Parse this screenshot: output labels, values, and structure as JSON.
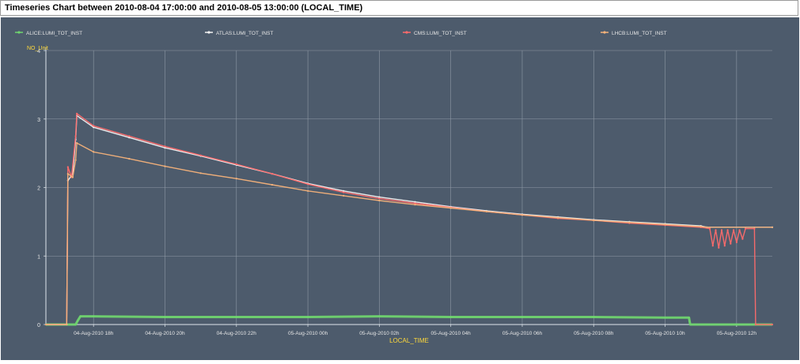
{
  "window": {
    "title": "Timeseries Chart between 2010-08-04 17:00:00 and 2010-08-05 13:00:00 (LOCAL_TIME)"
  },
  "chart_data": {
    "type": "line",
    "title": "",
    "xlabel": "LOCAL_TIME",
    "ylabel": "NO_Unit",
    "ylim": [
      0,
      4
    ],
    "y_ticks": [
      "0",
      "1",
      "2",
      "3",
      "4"
    ],
    "xlim": [
      "2010-08-04 16:40",
      "2010-08-05 13:00"
    ],
    "x_ticks": [
      {
        "t": "2010-08-04 18:00",
        "label": "04-Aug-2010 18h"
      },
      {
        "t": "2010-08-04 20:00",
        "label": "04-Aug-2010 20h"
      },
      {
        "t": "2010-08-04 22:00",
        "label": "04-Aug-2010 22h"
      },
      {
        "t": "2010-08-05 00:00",
        "label": "05-Aug-2010 00h"
      },
      {
        "t": "2010-08-05 02:00",
        "label": "05-Aug-2010 02h"
      },
      {
        "t": "2010-08-05 04:00",
        "label": "05-Aug-2010 04h"
      },
      {
        "t": "2010-08-05 06:00",
        "label": "05-Aug-2010 06h"
      },
      {
        "t": "2010-08-05 08:00",
        "label": "05-Aug-2010 08h"
      },
      {
        "t": "2010-08-05 10:00",
        "label": "05-Aug-2010 10h"
      },
      {
        "t": "2010-08-05 12:00",
        "label": "05-Aug-2010 12h"
      }
    ],
    "grid": true,
    "legend_position": "top",
    "background_color": "#4d5b6c",
    "gridline_color": "#8f9aa6",
    "label_color": "#ffd93a",
    "series": [
      {
        "name": "ALICE:LUMI_TOT_INST",
        "color": "#6fd46f",
        "points": [
          [
            "2010-08-04 16:40",
            0
          ],
          [
            "2010-08-04 17:30",
            0
          ],
          [
            "2010-08-04 17:33",
            0.05
          ],
          [
            "2010-08-04 17:38",
            0.12
          ],
          [
            "2010-08-04 18:00",
            0.12
          ],
          [
            "2010-08-04 20:00",
            0.11
          ],
          [
            "2010-08-04 22:00",
            0.11
          ],
          [
            "2010-08-05 00:00",
            0.11
          ],
          [
            "2010-08-05 02:00",
            0.12
          ],
          [
            "2010-08-05 04:00",
            0.11
          ],
          [
            "2010-08-05 06:00",
            0.11
          ],
          [
            "2010-08-05 08:00",
            0.11
          ],
          [
            "2010-08-05 10:00",
            0.1
          ],
          [
            "2010-08-05 10:40",
            0.1
          ],
          [
            "2010-08-05 10:42",
            0
          ],
          [
            "2010-08-05 13:00",
            0
          ]
        ]
      },
      {
        "name": "ATLAS:LUMI_TOT_INST",
        "color": "#f2f2f2",
        "points": [
          [
            "2010-08-04 16:40",
            0
          ],
          [
            "2010-08-04 17:15",
            0
          ],
          [
            "2010-08-04 17:17",
            2.1
          ],
          [
            "2010-08-04 17:25",
            2.2
          ],
          [
            "2010-08-04 17:30",
            2.7
          ],
          [
            "2010-08-04 17:32",
            3.05
          ],
          [
            "2010-08-04 18:00",
            2.88
          ],
          [
            "2010-08-04 19:00",
            2.73
          ],
          [
            "2010-08-04 20:00",
            2.58
          ],
          [
            "2010-08-04 21:00",
            2.46
          ],
          [
            "2010-08-04 22:00",
            2.33
          ],
          [
            "2010-08-04 23:00",
            2.2
          ],
          [
            "2010-08-05 00:00",
            2.06
          ],
          [
            "2010-08-05 01:00",
            1.95
          ],
          [
            "2010-08-05 02:00",
            1.86
          ],
          [
            "2010-08-05 03:00",
            1.79
          ],
          [
            "2010-08-05 04:00",
            1.72
          ],
          [
            "2010-08-05 05:00",
            1.66
          ],
          [
            "2010-08-05 06:00",
            1.61
          ],
          [
            "2010-08-05 07:00",
            1.57
          ],
          [
            "2010-08-05 08:00",
            1.53
          ],
          [
            "2010-08-05 09:00",
            1.5
          ],
          [
            "2010-08-05 10:00",
            1.47
          ],
          [
            "2010-08-05 11:00",
            1.44
          ],
          [
            "2010-08-05 11:10",
            1.42
          ],
          [
            "2010-08-05 13:00",
            1.42
          ]
        ]
      },
      {
        "name": "CMS:LUMI_TOT_INST",
        "color": "#ff6b6b",
        "points": [
          [
            "2010-08-04 16:40",
            0
          ],
          [
            "2010-08-04 17:15",
            0
          ],
          [
            "2010-08-04 17:17",
            2.3
          ],
          [
            "2010-08-04 17:23",
            2.15
          ],
          [
            "2010-08-04 17:30",
            2.75
          ],
          [
            "2010-08-04 17:32",
            3.08
          ],
          [
            "2010-08-04 18:00",
            2.9
          ],
          [
            "2010-08-04 19:00",
            2.75
          ],
          [
            "2010-08-04 20:00",
            2.6
          ],
          [
            "2010-08-04 21:00",
            2.47
          ],
          [
            "2010-08-04 22:00",
            2.34
          ],
          [
            "2010-08-04 23:00",
            2.2
          ],
          [
            "2010-08-05 00:00",
            2.05
          ],
          [
            "2010-08-05 01:00",
            1.93
          ],
          [
            "2010-08-05 02:00",
            1.84
          ],
          [
            "2010-08-05 03:00",
            1.77
          ],
          [
            "2010-08-05 04:00",
            1.71
          ],
          [
            "2010-08-05 05:00",
            1.65
          ],
          [
            "2010-08-05 06:00",
            1.6
          ],
          [
            "2010-08-05 07:00",
            1.55
          ],
          [
            "2010-08-05 08:00",
            1.52
          ],
          [
            "2010-08-05 09:00",
            1.48
          ],
          [
            "2010-08-05 10:00",
            1.45
          ],
          [
            "2010-08-05 11:00",
            1.42
          ],
          [
            "2010-08-05 11:15",
            1.4
          ],
          [
            "2010-08-05 11:20",
            1.15
          ],
          [
            "2010-08-05 11:25",
            1.38
          ],
          [
            "2010-08-05 11:30",
            1.12
          ],
          [
            "2010-08-05 11:35",
            1.38
          ],
          [
            "2010-08-05 11:40",
            1.15
          ],
          [
            "2010-08-05 11:45",
            1.38
          ],
          [
            "2010-08-05 11:50",
            1.18
          ],
          [
            "2010-08-05 11:55",
            1.38
          ],
          [
            "2010-08-05 12:00",
            1.2
          ],
          [
            "2010-08-05 12:05",
            1.38
          ],
          [
            "2010-08-05 12:10",
            1.25
          ],
          [
            "2010-08-05 12:15",
            1.4
          ],
          [
            "2010-08-05 12:30",
            1.4
          ],
          [
            "2010-08-05 12:32",
            0
          ],
          [
            "2010-08-05 13:00",
            0
          ]
        ]
      },
      {
        "name": "LHCB:LUMI_TOT_INST",
        "color": "#f5b27a",
        "points": [
          [
            "2010-08-04 16:40",
            0
          ],
          [
            "2010-08-04 17:15",
            0
          ],
          [
            "2010-08-04 17:17",
            2.2
          ],
          [
            "2010-08-04 17:25",
            2.15
          ],
          [
            "2010-08-04 17:30",
            2.4
          ],
          [
            "2010-08-04 17:32",
            2.65
          ],
          [
            "2010-08-04 18:00",
            2.52
          ],
          [
            "2010-08-04 19:00",
            2.42
          ],
          [
            "2010-08-04 20:00",
            2.31
          ],
          [
            "2010-08-04 21:00",
            2.21
          ],
          [
            "2010-08-04 22:00",
            2.13
          ],
          [
            "2010-08-04 23:00",
            2.04
          ],
          [
            "2010-08-05 00:00",
            1.95
          ],
          [
            "2010-08-05 01:00",
            1.88
          ],
          [
            "2010-08-05 02:00",
            1.81
          ],
          [
            "2010-08-05 03:00",
            1.75
          ],
          [
            "2010-08-05 04:00",
            1.7
          ],
          [
            "2010-08-05 05:00",
            1.65
          ],
          [
            "2010-08-05 06:00",
            1.6
          ],
          [
            "2010-08-05 07:00",
            1.56
          ],
          [
            "2010-08-05 08:00",
            1.52
          ],
          [
            "2010-08-05 09:00",
            1.49
          ],
          [
            "2010-08-05 10:00",
            1.46
          ],
          [
            "2010-08-05 11:00",
            1.43
          ],
          [
            "2010-08-05 11:10",
            1.42
          ],
          [
            "2010-08-05 13:00",
            1.42
          ]
        ]
      }
    ]
  }
}
